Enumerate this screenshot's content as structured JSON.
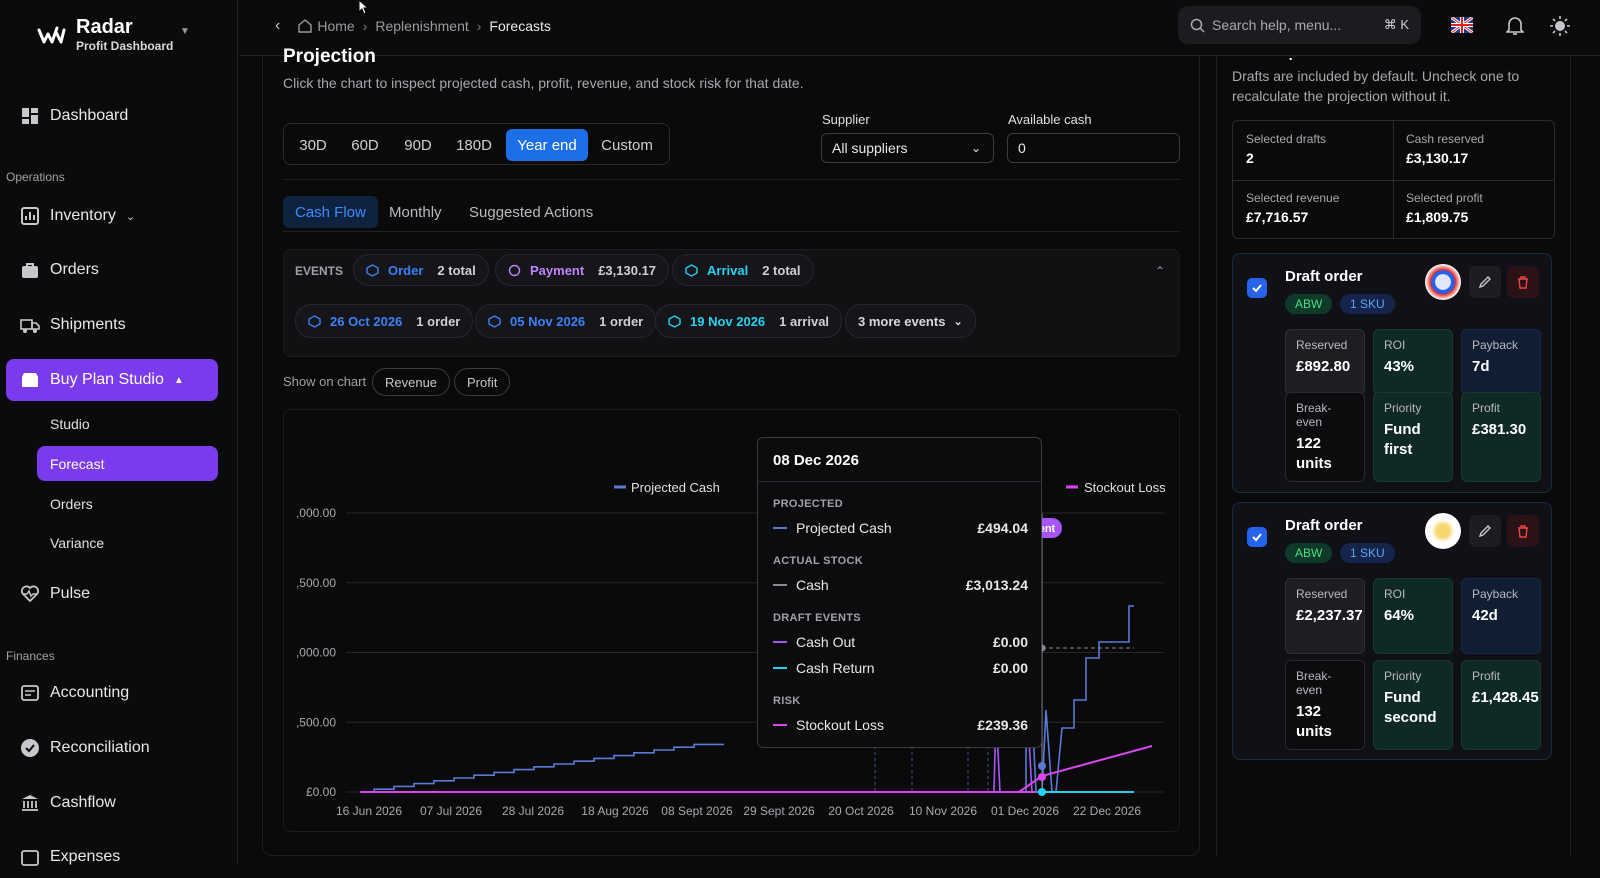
{
  "app": {
    "name": "Radar",
    "subtitle": "Profit Dashboard"
  },
  "sidebar": {
    "dashboard": "Dashboard",
    "operations_label": "Operations",
    "inventory": "Inventory",
    "orders": "Orders",
    "shipments": "Shipments",
    "buy_plan": "Buy Plan Studio",
    "sub": [
      "Studio",
      "Forecast",
      "Orders",
      "Variance"
    ],
    "pulse": "Pulse",
    "finances_label": "Finances",
    "accounting": "Accounting",
    "reconciliation": "Reconciliation",
    "cashflow": "Cashflow",
    "expenses": "Expenses"
  },
  "breadcrumbs": {
    "home": "Home",
    "replenishment": "Replenishment",
    "forecasts": "Forecasts"
  },
  "search": {
    "placeholder": "Search help, menu...",
    "shortcut": "⌘ K"
  },
  "projection": {
    "title": "Projection",
    "description": "Click the chart to inspect projected cash, profit, revenue, and stock risk for that date.",
    "ranges": [
      "30D",
      "60D",
      "90D",
      "180D",
      "Year end",
      "Custom"
    ],
    "active_range": "Year end",
    "supplier_label": "Supplier",
    "supplier_value": "All suppliers",
    "cash_label": "Available cash",
    "cash_value": "0"
  },
  "tabs": [
    "Cash Flow",
    "Monthly",
    "Suggested Actions"
  ],
  "events": {
    "label": "EVENTS",
    "summary": [
      {
        "name": "Order",
        "value": "2 total",
        "color": "#3b82f6"
      },
      {
        "name": "Payment",
        "value": "£3,130.17",
        "color": "#c084fc"
      },
      {
        "name": "Arrival",
        "value": "2 total",
        "color": "#22d3ee"
      }
    ],
    "dates": [
      {
        "date": "26 Oct 2026",
        "detail": "1 order",
        "color": "#3b82f6"
      },
      {
        "date": "05 Nov 2026",
        "detail": "1 order",
        "color": "#3b82f6"
      },
      {
        "date": "19 Nov 2026",
        "detail": "1 arrival",
        "color": "#22d3ee"
      }
    ],
    "more": "3 more events"
  },
  "show_on_chart": {
    "label": "Show on chart",
    "options": [
      "Revenue",
      "Profit"
    ]
  },
  "chart_data": {
    "type": "line",
    "legend": [
      "Projected Cash",
      "Stockout Loss"
    ],
    "y_ticks": [
      ",000.00",
      ",500.00",
      ",000.00",
      ",500.00",
      "£0.00"
    ],
    "x_ticks": [
      "16 Jun 2026",
      "07 Jul 2026",
      "28 Jul 2026",
      "18 Aug 2026",
      "08 Sept 2026",
      "29 Sept 2026",
      "20 Oct 2026",
      "10 Nov 2026",
      "01 Dec 2026",
      "22 Dec 2026"
    ],
    "marker_label": "yment",
    "series": [
      {
        "name": "Projected Cash",
        "color": "#5b7bd5",
        "points": [
          [
            16,
            0
          ],
          [
            30,
            0
          ],
          [
            30,
            0.1
          ],
          [
            50,
            0.1
          ],
          [
            50,
            0.2
          ],
          [
            70,
            0.2
          ],
          [
            70,
            0.3
          ],
          [
            90,
            0.3
          ],
          [
            90,
            0.4
          ],
          [
            110,
            0.4
          ],
          [
            110,
            0.5
          ],
          [
            130,
            0.5
          ],
          [
            130,
            0.6
          ],
          [
            150,
            0.6
          ],
          [
            150,
            0.7
          ],
          [
            170,
            0.7
          ],
          [
            170,
            0.8
          ],
          [
            190,
            0.8
          ],
          [
            190,
            0.9
          ],
          [
            210,
            0.9
          ],
          [
            210,
            1.0
          ],
          [
            230,
            1.0
          ],
          [
            230,
            1.1
          ],
          [
            250,
            1.1
          ],
          [
            250,
            1.2
          ],
          [
            270,
            1.2
          ],
          [
            270,
            1.3
          ],
          [
            290,
            1.3
          ],
          [
            290,
            1.4
          ],
          [
            310,
            1.4
          ],
          [
            310,
            1.5
          ],
          [
            330,
            1.5
          ],
          [
            330,
            1.6
          ],
          [
            350,
            1.6
          ],
          [
            350,
            1.7
          ],
          [
            380,
            1.7
          ]
        ]
      },
      {
        "name": "Stockout Loss",
        "color": "#d946ef",
        "points": [
          [
            16,
            0
          ],
          [
            320,
            0
          ]
        ]
      }
    ]
  },
  "tooltip": {
    "date": "08 Dec 2026",
    "sections": {
      "projected": "PROJECTED",
      "actual": "ACTUAL STOCK",
      "draft": "DRAFT EVENTS",
      "risk": "RISK"
    },
    "rows": [
      {
        "name": "Projected Cash",
        "value": "£494.04",
        "color": "#5b7bd5"
      },
      {
        "name": "Cash",
        "value": "£3,013.24",
        "color": "#8a8a90"
      },
      {
        "name": "Cash Out",
        "value": "£0.00",
        "color": "#a855f7"
      },
      {
        "name": "Cash Return",
        "value": "£0.00",
        "color": "#22d3ee"
      },
      {
        "name": "Stockout Loss",
        "value": "£239.36",
        "color": "#d946ef"
      }
    ]
  },
  "draft_impact": {
    "title": "Draft Impact",
    "description_1": "Drafts are included by default. Uncheck one to",
    "description_2": "recalculate the projection without it.",
    "selected_drafts_label": "Selected drafts",
    "selected_drafts": "2",
    "cash_reserved_label": "Cash reserved",
    "cash_reserved": "£3,130.17",
    "selected_revenue_label": "Selected revenue",
    "selected_revenue": "£7,716.57",
    "selected_profit_label": "Selected profit",
    "selected_profit": "£1,809.75"
  },
  "drafts": [
    {
      "title": "Draft order",
      "badge1": "ABW",
      "badge2": "1 SKU",
      "reserved_label": "Reserved",
      "reserved": "£892.80",
      "roi_label": "ROI",
      "roi": "43%",
      "payback_label": "Payback",
      "payback": "7d",
      "breakeven_label": "Break-even",
      "breakeven": "122 units",
      "priority_label": "Priority",
      "priority": "Fund first",
      "profit_label": "Profit",
      "profit": "£381.30"
    },
    {
      "title": "Draft order",
      "badge1": "ABW",
      "badge2": "1 SKU",
      "reserved_label": "Reserved",
      "reserved": "£2,237.37",
      "roi_label": "ROI",
      "roi": "64%",
      "payback_label": "Payback",
      "payback": "42d",
      "breakeven_label": "Break-even",
      "breakeven": "132 units",
      "priority_label": "Priority",
      "priority": "Fund second",
      "profit_label": "Profit",
      "profit": "£1,428.45"
    }
  ]
}
